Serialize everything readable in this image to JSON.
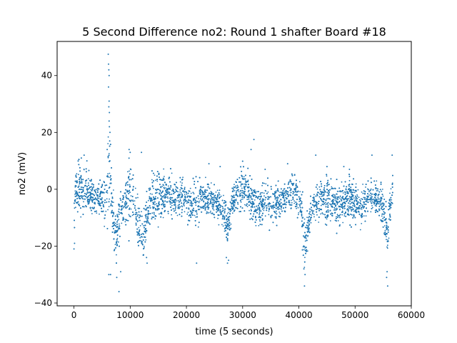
{
  "chart_data": {
    "type": "scatter",
    "title": "5 Second Difference no2: Round 1 shafter Board #18",
    "xlabel": "time (5 seconds)",
    "ylabel": "no2 (mV)",
    "xlim": [
      -3000,
      60000
    ],
    "ylim": [
      -41,
      52
    ],
    "xticks": [
      0,
      10000,
      20000,
      30000,
      40000,
      50000,
      60000
    ],
    "xtick_labels": [
      "0",
      "10000",
      "20000",
      "30000",
      "40000",
      "50000",
      "60000"
    ],
    "yticks": [
      -40,
      -20,
      0,
      20,
      40
    ],
    "ytick_labels": [
      "−40",
      "−20",
      "0",
      "20",
      "40"
    ],
    "grid": false,
    "marker_color": "#1f77b4",
    "series": [
      {
        "name": "",
        "envelope_x": [
          0,
          300,
          800,
          1500,
          2500,
          3500,
          4500,
          5200,
          5800,
          6100,
          6300,
          6600,
          7000,
          7500,
          8000,
          8500,
          9200,
          9800,
          10300,
          10800,
          11300,
          11800,
          12300,
          12800,
          13300,
          14000,
          15000,
          16000,
          17000,
          18000,
          19000,
          20000,
          21000,
          22000,
          23000,
          24000,
          25000,
          26000,
          26800,
          27300,
          27800,
          28300,
          29000,
          30000,
          31000,
          32000,
          33000,
          34000,
          35000,
          36000,
          37000,
          38000,
          39000,
          39800,
          40500,
          41000,
          41500,
          42000,
          43000,
          44000,
          45000,
          46000,
          47000,
          48000,
          49000,
          50000,
          51000,
          51800,
          52500,
          53500,
          54500,
          55300,
          55800,
          56200,
          56700
        ],
        "envelope_upper": [
          -2,
          8,
          9,
          9,
          6,
          3,
          2,
          3,
          12,
          25,
          20,
          8,
          -2,
          -6,
          -2,
          1,
          5,
          12,
          10,
          3,
          -4,
          -8,
          -10,
          -5,
          2,
          5,
          6,
          6,
          5,
          3,
          4,
          2,
          1,
          3,
          4,
          3,
          1,
          0,
          -1,
          -6,
          -2,
          1,
          5,
          8,
          6,
          2,
          1,
          2,
          3,
          1,
          2,
          4,
          6,
          5,
          1,
          -12,
          -8,
          -5,
          2,
          6,
          5,
          2,
          1,
          3,
          4,
          2,
          1,
          3,
          3,
          3,
          3,
          -2,
          -9,
          2,
          7
        ],
        "envelope_lower": [
          -16,
          -8,
          -8,
          -9,
          -9,
          -8,
          -9,
          -10,
          -12,
          -10,
          -10,
          -15,
          -22,
          -28,
          -18,
          -13,
          -12,
          -15,
          -10,
          -13,
          -18,
          -22,
          -25,
          -18,
          -13,
          -12,
          -11,
          -10,
          -9,
          -10,
          -10,
          -10,
          -12,
          -12,
          -9,
          -10,
          -10,
          -12,
          -16,
          -22,
          -14,
          -10,
          -8,
          -7,
          -9,
          -12,
          -12,
          -10,
          -12,
          -11,
          -9,
          -8,
          -8,
          -10,
          -16,
          -28,
          -22,
          -14,
          -11,
          -10,
          -11,
          -12,
          -13,
          -12,
          -11,
          -11,
          -12,
          -10,
          -9,
          -9,
          -11,
          -18,
          -25,
          -15,
          -8
        ],
        "spikes": [
          [
            6100,
            47.5
          ],
          [
            6150,
            44
          ],
          [
            6200,
            42
          ],
          [
            6250,
            40
          ],
          [
            6150,
            36
          ],
          [
            6250,
            31
          ],
          [
            6200,
            29
          ],
          [
            6300,
            27
          ],
          [
            6250,
            24
          ],
          [
            6300,
            22
          ],
          [
            6400,
            20
          ],
          [
            6350,
            17
          ],
          [
            5900,
            14
          ],
          [
            9800,
            14
          ],
          [
            10000,
            13
          ],
          [
            12000,
            13
          ],
          [
            32000,
            17.5
          ],
          [
            31500,
            14
          ],
          [
            43000,
            12
          ],
          [
            53000,
            12
          ],
          [
            56600,
            12
          ],
          [
            21800,
            -26
          ],
          [
            6200,
            -30
          ],
          [
            6500,
            -30
          ],
          [
            8000,
            -36
          ],
          [
            41000,
            -34
          ],
          [
            55800,
            -34
          ],
          [
            55600,
            -31
          ],
          [
            27300,
            -26
          ],
          [
            13000,
            -26
          ],
          [
            41100,
            -30
          ],
          [
            8300,
            -29
          ],
          [
            27500,
            -25
          ],
          [
            27100,
            -24
          ],
          [
            40900,
            -28
          ],
          [
            55700,
            -29
          ],
          [
            12900,
            -24
          ],
          [
            7600,
            -31
          ],
          [
            0,
            -21
          ],
          [
            100,
            -19
          ],
          [
            1300,
            11
          ],
          [
            1800,
            12
          ],
          [
            2300,
            10
          ],
          [
            24000,
            9
          ],
          [
            26000,
            8
          ],
          [
            38000,
            9
          ],
          [
            45000,
            8
          ],
          [
            48000,
            8
          ],
          [
            49000,
            7
          ],
          [
            34000,
            7
          ]
        ]
      }
    ]
  }
}
